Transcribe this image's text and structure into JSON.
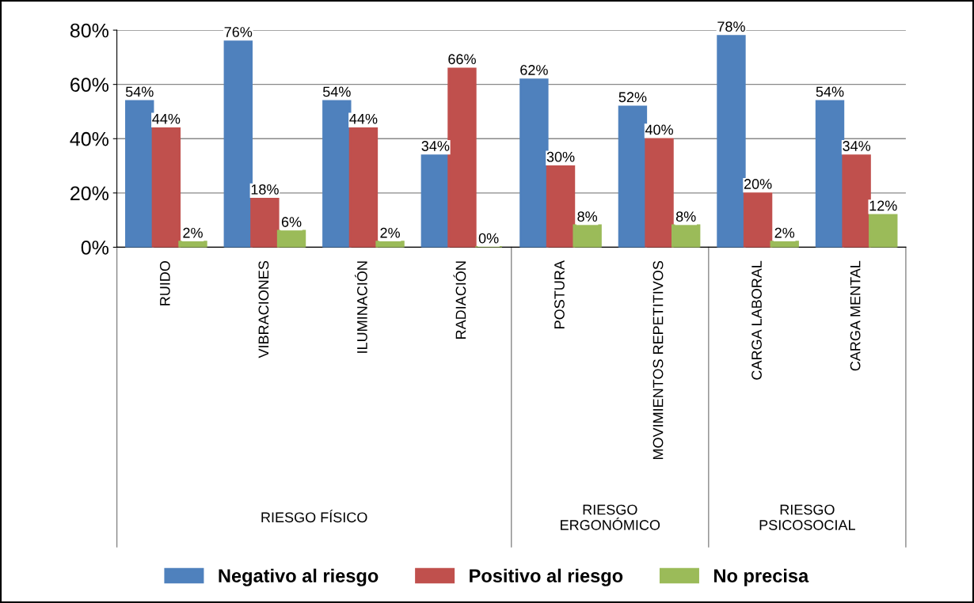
{
  "chart_data": {
    "type": "bar",
    "categories": [
      "RUIDO",
      "VIBRACIONES",
      "ILUMINACIÓN",
      "RADIACIÓN",
      "POSTURA",
      "MOVIMIENTOS REPETITIVOS",
      "CARGA LABORAL",
      "CARGA MENTAL"
    ],
    "series": [
      {
        "name": "Negativo al riesgo",
        "color": "#4f81bd",
        "values": [
          54,
          76,
          54,
          34,
          62,
          52,
          78,
          54
        ],
        "value_labels": [
          "54%",
          "76%",
          "54%",
          "34%",
          "62%",
          "52%",
          "78%",
          "54%"
        ]
      },
      {
        "name": "Positivo al riesgo",
        "color": "#c0504d",
        "values": [
          44,
          18,
          44,
          66,
          30,
          40,
          20,
          34
        ],
        "value_labels": [
          "44%",
          "18%",
          "44%",
          "66%",
          "30%",
          "40%",
          "20%",
          "34%"
        ]
      },
      {
        "name": "No precisa",
        "color": "#9bbb59",
        "values": [
          2,
          6,
          2,
          0,
          8,
          8,
          2,
          12
        ],
        "value_labels": [
          "2%",
          "6%",
          "2%",
          "0%",
          "8%",
          "8%",
          "2%",
          "12%"
        ]
      }
    ],
    "annotations": [
      "RIESGO FÍSICO",
      "RIESGO\nERGONÓMICO",
      "RIESGO\nPSICOSOCIAL"
    ],
    "ylim": [
      0,
      80
    ],
    "yticks": [
      {
        "value": 0,
        "label": "0%"
      },
      {
        "value": 20,
        "label": "20%"
      },
      {
        "value": 40,
        "label": "40%"
      },
      {
        "value": 60,
        "label": "60%"
      },
      {
        "value": 80,
        "label": "80%"
      }
    ],
    "grid": "y",
    "legend": "bottom"
  }
}
